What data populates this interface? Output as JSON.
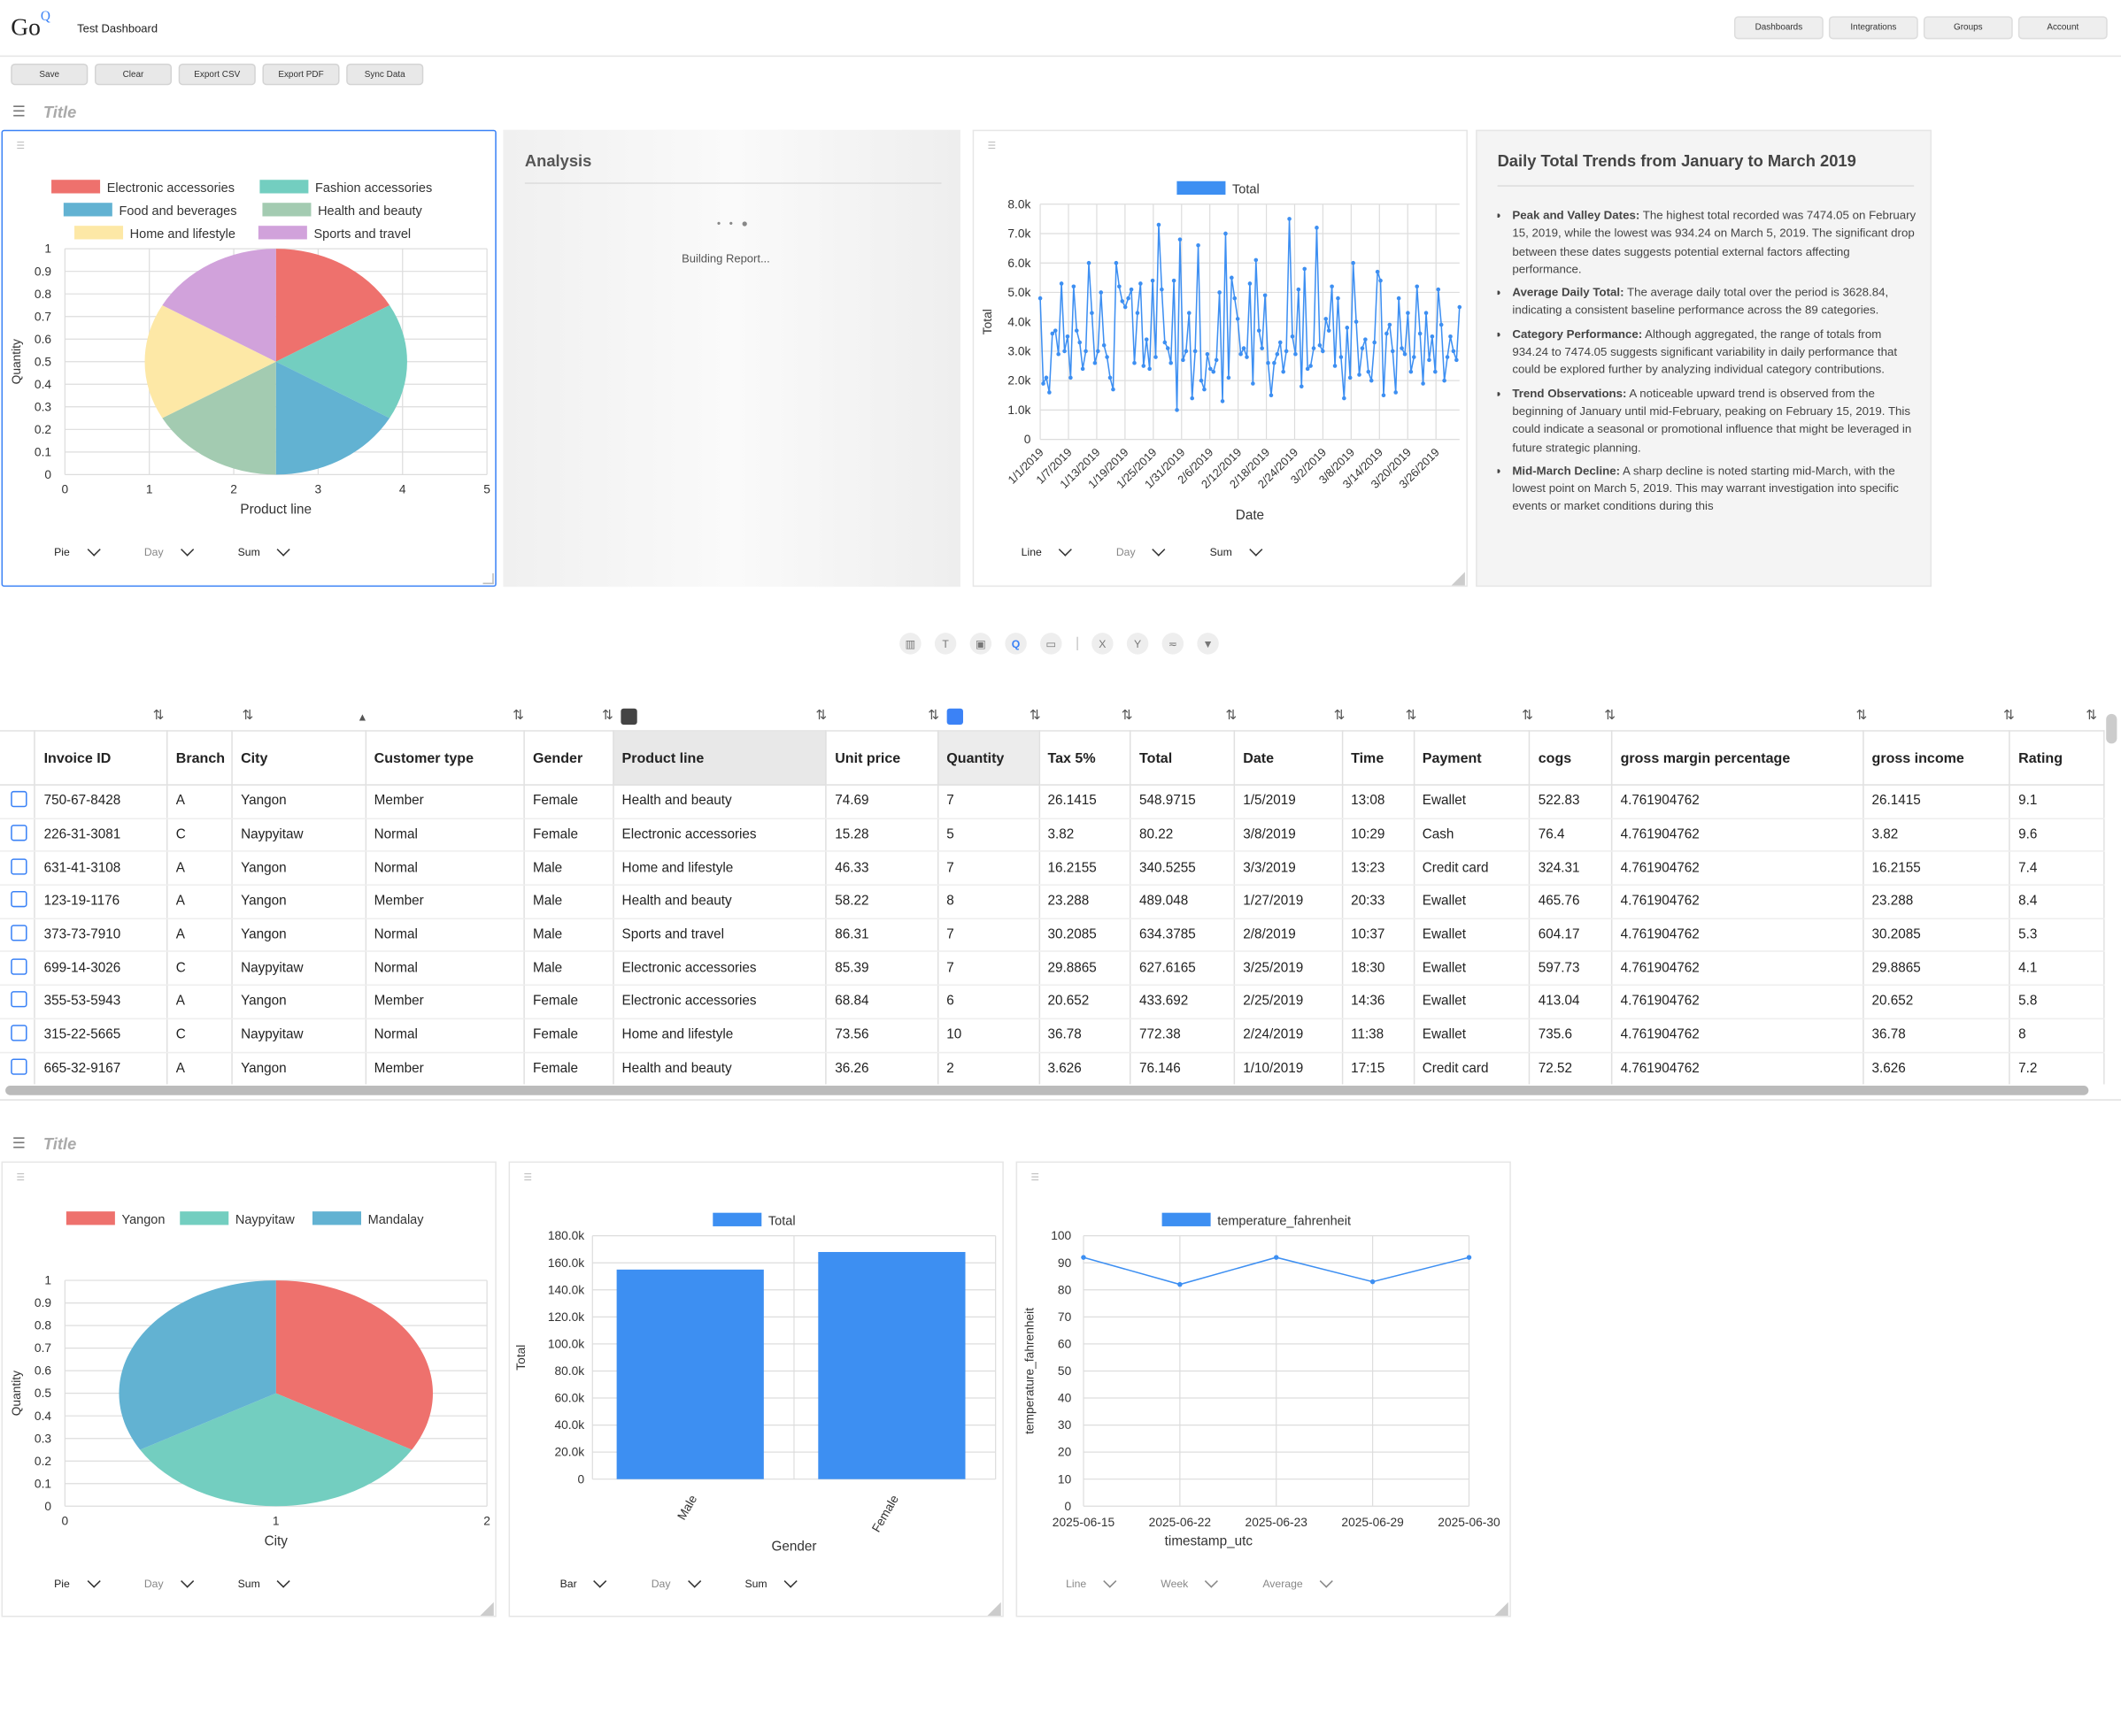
{
  "app": {
    "logo": "Go",
    "logo_sup": "Q",
    "title": "Test Dashboard"
  },
  "nav": [
    "Dashboards",
    "Integrations",
    "Groups",
    "Account"
  ],
  "toolbar": [
    "Save",
    "Clear",
    "Export CSV",
    "Export PDF",
    "Sync Data"
  ],
  "section1_title": "Title",
  "section2_title": "Title",
  "analysis": {
    "title": "Analysis",
    "loading": "Building Report..."
  },
  "insight": {
    "title": "Daily Total Trends from January to March 2019",
    "items": [
      {
        "label": "Peak and Valley Dates:",
        "text": " The highest total recorded was 7474.05 on February 15, 2019, while the lowest was 934.24 on March 5, 2019. The significant drop between these dates suggests potential external factors affecting performance."
      },
      {
        "label": "Average Daily Total:",
        "text": " The average daily total over the period is 3628.84, indicating a consistent baseline performance across the 89 categories."
      },
      {
        "label": "Category Performance:",
        "text": " Although aggregated, the range of totals from 934.24 to 7474.05 suggests significant variability in daily performance that could be explored further by analyzing individual category contributions."
      },
      {
        "label": "Trend Observations:",
        "text": " A noticeable upward trend is observed from the beginning of January until mid-February, peaking on February 15, 2019. This could indicate a seasonal or promotional influence that might be leveraged in future strategic planning."
      },
      {
        "label": "Mid-March Decline:",
        "text": " A sharp decline is noted starting mid-March, with the lowest point on March 5, 2019. This may warrant investigation into specific events or market conditions during this"
      }
    ]
  },
  "controls": {
    "pie1": [
      "Pie",
      "Day",
      "Sum"
    ],
    "line1": [
      "Line",
      "Day",
      "Sum"
    ],
    "pie2": [
      "Pie",
      "Day",
      "Sum"
    ],
    "bar1": [
      "Bar",
      "Day",
      "Sum"
    ],
    "line2": [
      "Line",
      "Week",
      "Average"
    ]
  },
  "table": {
    "columns": [
      "Invoice ID",
      "Branch",
      "City",
      "Customer type",
      "Gender",
      "Product line",
      "Unit price",
      "Quantity",
      "Tax 5%",
      "Total",
      "Date",
      "Time",
      "Payment",
      "cogs",
      "gross margin percentage",
      "gross income",
      "Rating"
    ],
    "rows": [
      [
        "750-67-8428",
        "A",
        "Yangon",
        "Member",
        "Female",
        "Health and beauty",
        "74.69",
        "7",
        "26.1415",
        "548.9715",
        "1/5/2019",
        "13:08",
        "Ewallet",
        "522.83",
        "4.761904762",
        "26.1415",
        "9.1"
      ],
      [
        "226-31-3081",
        "C",
        "Naypyitaw",
        "Normal",
        "Female",
        "Electronic accessories",
        "15.28",
        "5",
        "3.82",
        "80.22",
        "3/8/2019",
        "10:29",
        "Cash",
        "76.4",
        "4.761904762",
        "3.82",
        "9.6"
      ],
      [
        "631-41-3108",
        "A",
        "Yangon",
        "Normal",
        "Male",
        "Home and lifestyle",
        "46.33",
        "7",
        "16.2155",
        "340.5255",
        "3/3/2019",
        "13:23",
        "Credit card",
        "324.31",
        "4.761904762",
        "16.2155",
        "7.4"
      ],
      [
        "123-19-1176",
        "A",
        "Yangon",
        "Member",
        "Male",
        "Health and beauty",
        "58.22",
        "8",
        "23.288",
        "489.048",
        "1/27/2019",
        "20:33",
        "Ewallet",
        "465.76",
        "4.761904762",
        "23.288",
        "8.4"
      ],
      [
        "373-73-7910",
        "A",
        "Yangon",
        "Normal",
        "Male",
        "Sports and travel",
        "86.31",
        "7",
        "30.2085",
        "634.3785",
        "2/8/2019",
        "10:37",
        "Ewallet",
        "604.17",
        "4.761904762",
        "30.2085",
        "5.3"
      ],
      [
        "699-14-3026",
        "C",
        "Naypyitaw",
        "Normal",
        "Male",
        "Electronic accessories",
        "85.39",
        "7",
        "29.8865",
        "627.6165",
        "3/25/2019",
        "18:30",
        "Ewallet",
        "597.73",
        "4.761904762",
        "29.8865",
        "4.1"
      ],
      [
        "355-53-5943",
        "A",
        "Yangon",
        "Member",
        "Female",
        "Electronic accessories",
        "68.84",
        "6",
        "20.652",
        "433.692",
        "2/25/2019",
        "14:36",
        "Ewallet",
        "413.04",
        "4.761904762",
        "20.652",
        "5.8"
      ],
      [
        "315-22-5665",
        "C",
        "Naypyitaw",
        "Normal",
        "Female",
        "Home and lifestyle",
        "73.56",
        "10",
        "36.78",
        "772.38",
        "2/24/2019",
        "11:38",
        "Ewallet",
        "735.6",
        "4.761904762",
        "36.78",
        "8"
      ],
      [
        "665-32-9167",
        "A",
        "Yangon",
        "Member",
        "Female",
        "Health and beauty",
        "36.26",
        "2",
        "3.626",
        "76.146",
        "1/10/2019",
        "17:15",
        "Credit card",
        "72.52",
        "4.761904762",
        "3.626",
        "7.2"
      ]
    ]
  },
  "chart_data": [
    {
      "type": "pie",
      "legend": [
        "Electronic accessories",
        "Fashion accessories",
        "Food and beverages",
        "Health and beauty",
        "Home and lifestyle",
        "Sports and travel"
      ],
      "values": [
        1,
        1,
        1,
        1,
        1,
        1
      ],
      "colors": [
        "#ee716d",
        "#73cec0",
        "#62b2d2",
        "#a3cbb1",
        "#fde8a6",
        "#d1a2db"
      ],
      "xlabel": "Product line",
      "ylabel": "Quantity",
      "xticks": [
        "0",
        "1",
        "2",
        "3",
        "4",
        "5"
      ],
      "yticks": [
        "0",
        "0.1",
        "0.2",
        "0.3",
        "0.4",
        "0.5",
        "0.6",
        "0.7",
        "0.8",
        "0.9",
        "1"
      ]
    },
    {
      "type": "line",
      "series": [
        {
          "name": "Total",
          "color": "#3d8ff2",
          "values": [
            4800,
            1900,
            2100,
            1600,
            3600,
            3700,
            2900,
            5300,
            3000,
            3500,
            2100,
            5200,
            3700,
            3300,
            2400,
            3000,
            6000,
            4300,
            2600,
            3000,
            5000,
            3200,
            2800,
            2100,
            1700,
            6000,
            5200,
            4700,
            4500,
            4800,
            5100,
            2600,
            4300,
            5300,
            2500,
            3400,
            2400,
            5400,
            2800,
            7300,
            5100,
            3300,
            3100,
            2600,
            5400,
            1000,
            6800,
            2700,
            3000,
            4300,
            1400,
            3000,
            6600,
            2000,
            1700,
            2900,
            2400,
            2300,
            2700,
            5000,
            1300,
            7000,
            2100,
            5500,
            4800,
            4100,
            2900,
            3100,
            2800,
            5300,
            1900,
            6100,
            3700,
            3100,
            4900,
            2600,
            1500,
            2600,
            2900,
            3300,
            2300,
            3000,
            7500,
            3500,
            2900,
            5100,
            1800,
            5800,
            2400,
            2500,
            3100,
            7200,
            3200,
            3000,
            4100,
            3700,
            5200,
            2500,
            4800,
            2800,
            1400,
            3800,
            2100,
            6000,
            4000,
            2200,
            3100,
            3400,
            2300,
            2000,
            3300,
            5700,
            5400,
            1500,
            3600,
            3900,
            3000,
            1600,
            4800,
            3100,
            2900,
            4300,
            2300,
            2800,
            5200,
            3600,
            1900,
            4300,
            2700,
            3500,
            2300,
            5100,
            3900,
            2000,
            2800,
            3500,
            3000,
            2700,
            4500
          ]
        }
      ],
      "xlabel": "Date",
      "ylabel": "Total",
      "yticks": [
        "0",
        "1.0k",
        "2.0k",
        "3.0k",
        "4.0k",
        "5.0k",
        "6.0k",
        "7.0k",
        "8.0k"
      ],
      "xticks": [
        "1/1/2019",
        "1/7/2019",
        "1/13/2019",
        "1/19/2019",
        "1/25/2019",
        "1/31/2019",
        "2/6/2019",
        "2/12/2019",
        "2/18/2019",
        "2/24/2019",
        "3/2/2019",
        "3/8/2019",
        "3/14/2019",
        "3/20/2019",
        "3/26/2019"
      ],
      "ylim": [
        0,
        8000
      ]
    },
    {
      "type": "pie",
      "legend": [
        "Yangon",
        "Naypyitaw",
        "Mandalay"
      ],
      "values": [
        1,
        1,
        1
      ],
      "colors": [
        "#ee716d",
        "#73cec0",
        "#62b2d2"
      ],
      "xlabel": "City",
      "ylabel": "Quantity",
      "xticks": [
        "0",
        "1",
        "2"
      ],
      "yticks": [
        "0",
        "0.1",
        "0.2",
        "0.3",
        "0.4",
        "0.5",
        "0.6",
        "0.7",
        "0.8",
        "0.9",
        "1"
      ]
    },
    {
      "type": "bar",
      "categories": [
        "Male",
        "Female"
      ],
      "series": [
        {
          "name": "Total",
          "color": "#3d8ff2",
          "values": [
            155000,
            168000
          ]
        }
      ],
      "xlabel": "Gender",
      "ylabel": "Total",
      "yticks": [
        "0",
        "20.0k",
        "40.0k",
        "60.0k",
        "80.0k",
        "100.0k",
        "120.0k",
        "140.0k",
        "160.0k",
        "180.0k"
      ],
      "ylim": [
        0,
        180000
      ]
    },
    {
      "type": "line",
      "categories": [
        "2025-06-15",
        "2025-06-22",
        "2025-06-23",
        "2025-06-29",
        "2025-06-30"
      ],
      "series": [
        {
          "name": "temperature_fahrenheit",
          "color": "#3d8ff2",
          "values": [
            92,
            82,
            92,
            83,
            92
          ]
        }
      ],
      "xlabel": "timestamp_utc",
      "ylabel": "temperature_fahrenheit",
      "yticks": [
        "0",
        "10",
        "20",
        "30",
        "40",
        "50",
        "60",
        "70",
        "80",
        "90",
        "100"
      ],
      "ylim": [
        0,
        100
      ]
    }
  ]
}
